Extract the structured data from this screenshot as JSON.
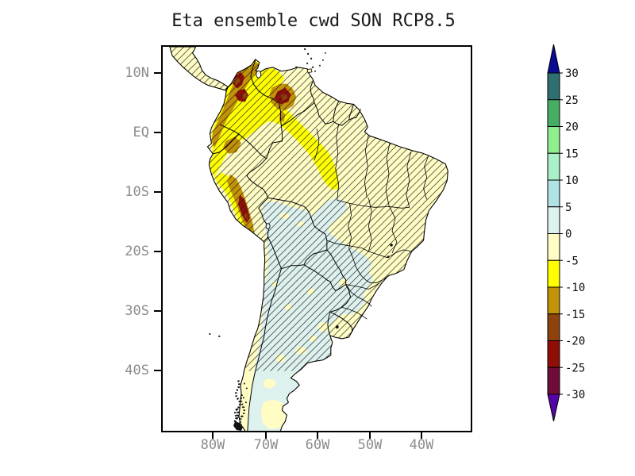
{
  "title": "Eta ensemble cwd SON RCP8.5",
  "axes": {
    "y_tick_labels": [
      "10N",
      "EQ",
      "10S",
      "20S",
      "30S",
      "40S"
    ],
    "x_tick_labels": [
      "80W",
      "70W",
      "60W",
      "50W",
      "40W"
    ]
  },
  "colorbar": {
    "tick_labels": [
      "30",
      "25",
      "20",
      "15",
      "10",
      "5",
      "0",
      "-5",
      "-10",
      "-15",
      "-20",
      "-25",
      "-30"
    ],
    "segment_colors_top_to_bottom": [
      "#2f6f6f",
      "#46ae64",
      "#90ee90",
      "#aaf0c8",
      "#b0e2e6",
      "#ddf1ee",
      "#fffdc4",
      "#ffff00",
      "#c29209",
      "#8e430e",
      "#8f0f08",
      "#700c38"
    ],
    "arrow_top_color": "#0a0a94",
    "arrow_bottom_color": "#5505a5"
  },
  "palette": {
    "cream": "#fffdc4",
    "yellow": "#ffff00",
    "gold": "#c29209",
    "brown": "#8e430e",
    "darkred": "#8f0f08",
    "paleblue": "#ddf1ee",
    "white": "#ffffff",
    "speckle": "#111111"
  },
  "chart_data": {
    "type": "filled-contour-map",
    "title": "Eta ensemble cwd SON RCP8.5",
    "region": "South America (approx. 90W-30W, 50S-15N)",
    "x_ticks": [
      "80W",
      "70W",
      "60W",
      "50W",
      "40W"
    ],
    "y_ticks": [
      "10N",
      "EQ",
      "10S",
      "20S",
      "30S",
      "40S"
    ],
    "contour_levels": [
      -30,
      -25,
      -20,
      -15,
      -10,
      -5,
      0,
      5,
      10,
      15,
      20,
      25,
      30
    ],
    "palette_low_to_high": [
      "#5505a5",
      "#700c38",
      "#8f0f08",
      "#8e430e",
      "#c29209",
      "#ffff00",
      "#fffdc4",
      "#ddf1ee",
      "#b0e2e6",
      "#aaf0c8",
      "#90ee90",
      "#46ae64",
      "#2f6f6f",
      "#0a0a94"
    ],
    "legend_position": "right vertical colorbar with open-ended arrow caps",
    "grid": false,
    "hatching": "diagonal 45-degree hatch lines cover most of the continent north of ~35S",
    "region_values": [
      {
        "region": "Colombia / W Venezuela / E Ecuador / NE Peru",
        "value": "-5 to -10 (bright yellow)"
      },
      {
        "region": "Colombian Andes cores and Venezuela Andes spot",
        "value": "-15 to -30 (gold, brown, dark red)"
      },
      {
        "region": "Peruvian Andes strip (~7S-17S)",
        "value": "-10 to -25 (gold with dark red core)"
      },
      {
        "region": "Amazon basin, Guianas, NE and E Brazil, Chile",
        "value": "0 to -5 (pale cream)"
      },
      {
        "region": "S Bolivia, Paraguay, N-central Argentina, S Brazil, Patagonia interior",
        "value": "0 to 5 (pale blue)"
      },
      {
        "region": "SE Patagonia and Andean-Argentina patches",
        "value": "0 to -5 (pale cream patches)"
      }
    ]
  }
}
